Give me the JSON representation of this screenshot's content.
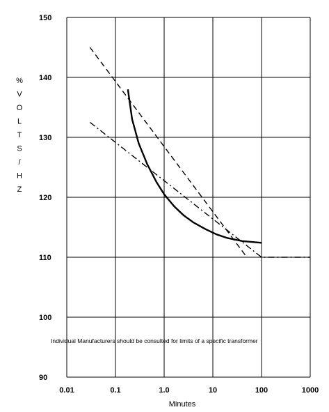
{
  "chart_data": {
    "type": "line",
    "title": "",
    "xlabel": "Minutes",
    "ylabel_chars": [
      "%",
      "V",
      "O",
      "L",
      "T",
      "S",
      "/",
      "H",
      "Z"
    ],
    "x_scale": "log",
    "xlim": [
      0.01,
      1000
    ],
    "ylim": [
      90,
      150
    ],
    "x_ticks": [
      0.01,
      0.1,
      1,
      10,
      100,
      1000
    ],
    "x_tick_labels": [
      "0.01",
      "0.1",
      "1.0",
      "10",
      "100",
      "1000"
    ],
    "y_ticks": [
      90,
      100,
      110,
      120,
      130,
      140,
      150
    ],
    "y_tick_labels": [
      "90",
      "100",
      "110",
      "120",
      "130",
      "140",
      "150"
    ],
    "grid": true,
    "annotation": "Individual Manufacturers should be consulted for limits of a specific transformer",
    "series": [
      {
        "style": "solid",
        "color": "#000000",
        "points": [
          [
            0.18,
            138
          ],
          [
            0.22,
            133
          ],
          [
            0.3,
            129
          ],
          [
            0.45,
            125.5
          ],
          [
            0.7,
            122.5
          ],
          [
            1.0,
            120.5
          ],
          [
            1.6,
            118.5
          ],
          [
            2.5,
            117
          ],
          [
            4,
            115.8
          ],
          [
            7,
            114.7
          ],
          [
            12,
            113.8
          ],
          [
            20,
            113.2
          ],
          [
            40,
            112.7
          ],
          [
            100,
            112.4
          ]
        ]
      },
      {
        "style": "dashed",
        "color": "#000000",
        "points": [
          [
            0.03,
            145
          ],
          [
            50,
            110
          ]
        ]
      },
      {
        "style": "dashdot",
        "color": "#000000",
        "points": [
          [
            0.03,
            132.5
          ],
          [
            100,
            110
          ],
          [
            1000,
            110
          ]
        ]
      }
    ]
  }
}
